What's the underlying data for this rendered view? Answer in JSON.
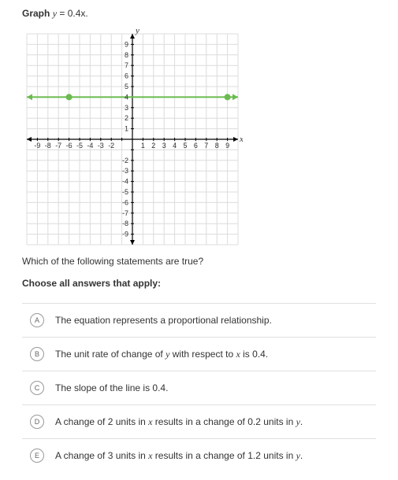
{
  "prompt": {
    "label": "Graph",
    "expression_y": "y",
    "expression_eq": " = ",
    "expression_rhs": "0.4x",
    "period": "."
  },
  "chart": {
    "type": "line",
    "xlim": [
      -10,
      10
    ],
    "ylim": [
      -10,
      10
    ],
    "xticks": [
      -9,
      -8,
      -7,
      -6,
      -5,
      -4,
      -3,
      -2,
      1,
      2,
      3,
      4,
      5,
      6,
      7,
      8,
      9
    ],
    "yticks": [
      -9,
      -8,
      -7,
      -6,
      -5,
      -4,
      -3,
      -2,
      1,
      2,
      3,
      4,
      5,
      6,
      7,
      8,
      9
    ],
    "xlabel": "x",
    "ylabel": "y",
    "grid_color": "#dcdcdc",
    "axis_color": "#000000",
    "background_color": "#ffffff",
    "line": {
      "y_value": 4,
      "color": "#6bbb4f",
      "width": 2,
      "x_start": -10,
      "x_end": 10
    },
    "points": [
      {
        "x": -6,
        "y": 4,
        "color": "#6bbb4f",
        "radius": 4
      },
      {
        "x": 9,
        "y": 4,
        "color": "#6bbb4f",
        "radius": 4
      }
    ],
    "label_fontsize": 9,
    "label_color": "#333333"
  },
  "question": "Which of the following statements are true?",
  "instruction": "Choose all answers that apply:",
  "options": {
    "a": {
      "letter": "A",
      "text_pre": "The equation represents a proportional relationship.",
      "text_mid": "",
      "text_post": ""
    },
    "b": {
      "letter": "B",
      "text_pre": "The unit rate of change of ",
      "var1": "y",
      "text_mid": " with respect to ",
      "var2": "x",
      "text_post": " is ",
      "num": "0.4",
      "text_end": "."
    },
    "c": {
      "letter": "C",
      "text_pre": "The slope of the line is ",
      "num": "0.4",
      "text_end": "."
    },
    "d": {
      "letter": "D",
      "text_pre": "A change of ",
      "num1": "2",
      "text_mid1": " units in ",
      "var1": "x",
      "text_mid2": " results in a change of ",
      "num2": "0.2",
      "text_mid3": " units in ",
      "var2": "y",
      "text_end": "."
    },
    "e": {
      "letter": "E",
      "text_pre": "A change of ",
      "num1": "3",
      "text_mid1": " units in ",
      "var1": "x",
      "text_mid2": " results in a change of ",
      "num2": "1.2",
      "text_mid3": " units in ",
      "var2": "y",
      "text_end": "."
    }
  }
}
